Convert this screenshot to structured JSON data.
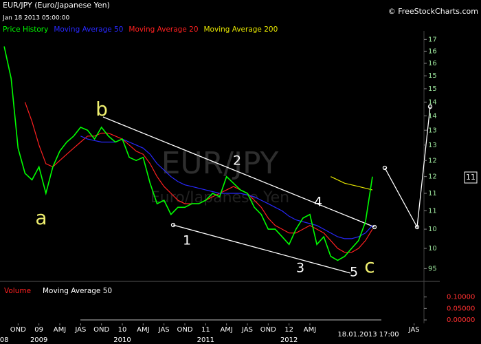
{
  "header": {
    "title": "EUR/JPY (Euro/Japanese Yen)",
    "timestamp": "Jan 18 2013 05:00:00",
    "copyright": "© FreeStockCharts.com"
  },
  "chart_data": {
    "type": "line",
    "log_scale": true,
    "watermark": "EUR/JPY",
    "watermark_subtitle": "Euro/Japanese Yen",
    "x": [
      "2008-08",
      "2008-09",
      "2008-10",
      "2008-11",
      "2008-12",
      "2009-01",
      "2009-02",
      "2009-03",
      "2009-04",
      "2009-05",
      "2009-06",
      "2009-07",
      "2009-08",
      "2009-09",
      "2009-10",
      "2009-11",
      "2009-12",
      "2010-01",
      "2010-02",
      "2010-03",
      "2010-04",
      "2010-05",
      "2010-06",
      "2010-07",
      "2010-08",
      "2010-09",
      "2010-10",
      "2010-11",
      "2010-12",
      "2011-01",
      "2011-02",
      "2011-03",
      "2011-04",
      "2011-05",
      "2011-06",
      "2011-07",
      "2011-08",
      "2011-09",
      "2011-10",
      "2011-11",
      "2011-12",
      "2012-01",
      "2012-02",
      "2012-03",
      "2012-04",
      "2012-05",
      "2012-06",
      "2012-07",
      "2012-08",
      "2012-09",
      "2012-10",
      "2012-11",
      "2012-12",
      "2013-01"
    ],
    "series": [
      {
        "name": "Price History",
        "color": "#00ff00",
        "values": [
          167,
          154,
          129,
          121,
          119,
          123,
          115,
          123,
          128,
          131,
          133,
          136,
          135,
          132,
          136,
          133,
          131,
          132,
          126,
          125,
          126,
          118,
          112,
          113,
          109,
          111,
          111,
          112,
          112,
          113,
          115,
          114,
          120,
          118,
          116,
          115,
          111,
          109,
          105,
          105,
          103,
          101,
          105,
          108,
          109,
          101,
          103,
          98,
          97,
          98,
          100,
          102,
          107,
          120
        ]
      },
      {
        "name": "Moving Average 50",
        "color": "#2828ff",
        "values": [
          null,
          null,
          null,
          null,
          null,
          null,
          null,
          null,
          null,
          null,
          null,
          133,
          132,
          131.5,
          131,
          131,
          131,
          132,
          131,
          130,
          129,
          127,
          124,
          122,
          120,
          118.5,
          117.5,
          117,
          116.5,
          116,
          115.5,
          115,
          115,
          115,
          115,
          114.5,
          114,
          113,
          112,
          111,
          110,
          108.5,
          107.5,
          107,
          106.5,
          106,
          105,
          104,
          103,
          102.5,
          102.5,
          103,
          104,
          106
        ]
      },
      {
        "name": "Moving Average 20",
        "color": "#ff2020",
        "values": [
          null,
          null,
          null,
          145,
          138,
          130,
          124,
          123,
          125,
          127,
          129,
          131,
          133,
          133,
          134,
          134,
          133,
          132,
          130,
          128,
          127,
          124,
          120,
          117,
          115,
          113,
          112,
          112,
          112,
          113,
          114,
          115,
          116,
          117,
          116,
          115,
          113,
          111,
          108,
          106,
          105,
          104,
          104,
          105,
          106,
          105,
          104,
          102,
          100,
          99,
          99,
          100,
          102,
          105
        ]
      },
      {
        "name": "Moving Average 200",
        "color": "#e8e800",
        "values": [
          null,
          null,
          null,
          null,
          null,
          null,
          null,
          null,
          null,
          null,
          null,
          null,
          null,
          null,
          null,
          null,
          null,
          null,
          null,
          null,
          null,
          null,
          null,
          null,
          null,
          null,
          null,
          null,
          null,
          null,
          null,
          null,
          null,
          null,
          null,
          null,
          null,
          null,
          null,
          null,
          null,
          null,
          null,
          null,
          null,
          null,
          null,
          120,
          119,
          118,
          117.5,
          117,
          116.5,
          116
        ]
      }
    ],
    "xlim": [
      "2008-07",
      "2013-10"
    ],
    "xticks": [
      {
        "value": "2008-10",
        "label": "OND"
      },
      {
        "value": "2009-01",
        "label": "09"
      },
      {
        "value": "2009-04",
        "label": "AMJ"
      },
      {
        "value": "2009-07",
        "label": "JAS"
      },
      {
        "value": "2009-10",
        "label": "OND"
      },
      {
        "value": "2010-01",
        "label": "10"
      },
      {
        "value": "2010-04",
        "label": "AMJ"
      },
      {
        "value": "2010-07",
        "label": "JAS"
      },
      {
        "value": "2010-10",
        "label": "OND"
      },
      {
        "value": "2011-01",
        "label": "11"
      },
      {
        "value": "2011-04",
        "label": "AMJ"
      },
      {
        "value": "2011-07",
        "label": "JAS"
      },
      {
        "value": "2011-10",
        "label": "OND"
      },
      {
        "value": "2012-01",
        "label": "12"
      },
      {
        "value": "2012-04",
        "label": "AMJ"
      },
      {
        "value": "2013-07",
        "label": "JAS"
      }
    ],
    "year_labels": [
      {
        "value": "2008-08",
        "label": "08"
      },
      {
        "value": "2009-01",
        "label": "2009"
      },
      {
        "value": "2010-01",
        "label": "2010"
      },
      {
        "value": "2011-01",
        "label": "2011"
      },
      {
        "value": "2012-01",
        "label": "2012"
      }
    ],
    "ylim": [
      92.6,
      173.7
    ],
    "yticks": [
      {
        "value": 170,
        "label": "17"
      },
      {
        "value": 165,
        "label": "16"
      },
      {
        "value": 160,
        "label": "16"
      },
      {
        "value": 155,
        "label": "15"
      },
      {
        "value": 150,
        "label": "15"
      },
      {
        "value": 145,
        "label": "14"
      },
      {
        "value": 140,
        "label": "14"
      },
      {
        "value": 135,
        "label": "13"
      },
      {
        "value": 130,
        "label": "13"
      },
      {
        "value": 125,
        "label": "12"
      },
      {
        "value": 120,
        "label": "12"
      },
      {
        "value": 115,
        "label": "11"
      },
      {
        "value": 110,
        "label": "11"
      },
      {
        "value": 105,
        "label": "10"
      },
      {
        "value": 100,
        "label": "10"
      },
      95
    ],
    "current_price_label": "11",
    "annotations": [
      {
        "text": "a",
        "color": "#f0f070"
      },
      {
        "text": "b",
        "color": "#f0f070"
      },
      {
        "text": "1",
        "color": "#ffffff"
      },
      {
        "text": "2",
        "color": "#ffffff"
      },
      {
        "text": "3",
        "color": "#ffffff"
      },
      {
        "text": "4",
        "color": "#ffffff"
      },
      {
        "text": "5",
        "color": "#ffffff"
      },
      {
        "text": "c",
        "color": "#f0f070"
      }
    ],
    "date_box": "18.01.2013 17:00"
  },
  "volume_panel": {
    "title": "Volume",
    "title_color": "#ff2020",
    "legend": "Moving Average 50",
    "ylim": [
      -0.015,
      0.15
    ],
    "yticks": [
      {
        "value": 0.1,
        "label": "0.10000"
      },
      {
        "value": 0.05,
        "label": "0.05000"
      },
      {
        "value": 0,
        "label": "0.00000"
      }
    ]
  }
}
